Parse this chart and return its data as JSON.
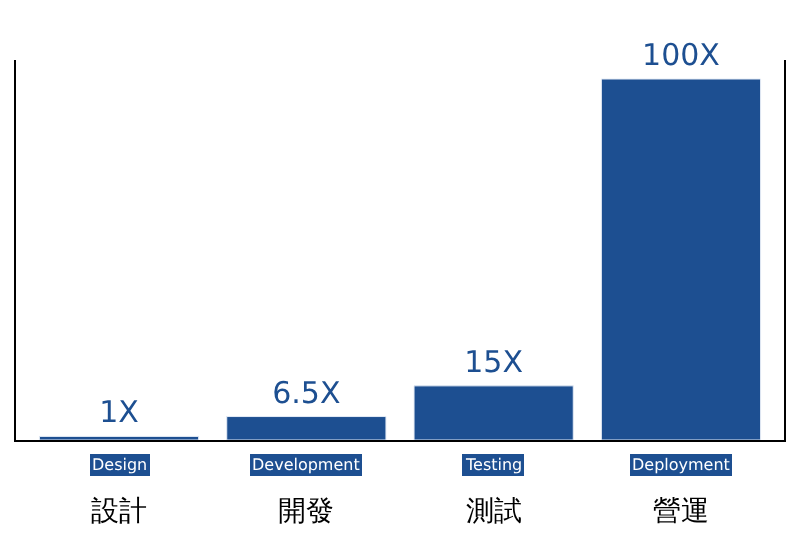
{
  "chart_data": {
    "type": "bar",
    "categories": [
      "設計",
      "開發",
      "測試",
      "營運"
    ],
    "values": [
      1,
      6.5,
      15,
      100
    ],
    "value_labels": [
      "1X",
      "6.5X",
      "15X",
      "100X"
    ],
    "color": "#1d4f91",
    "annotations": [
      "Design",
      "Development",
      "Testing",
      "Deployment"
    ]
  }
}
